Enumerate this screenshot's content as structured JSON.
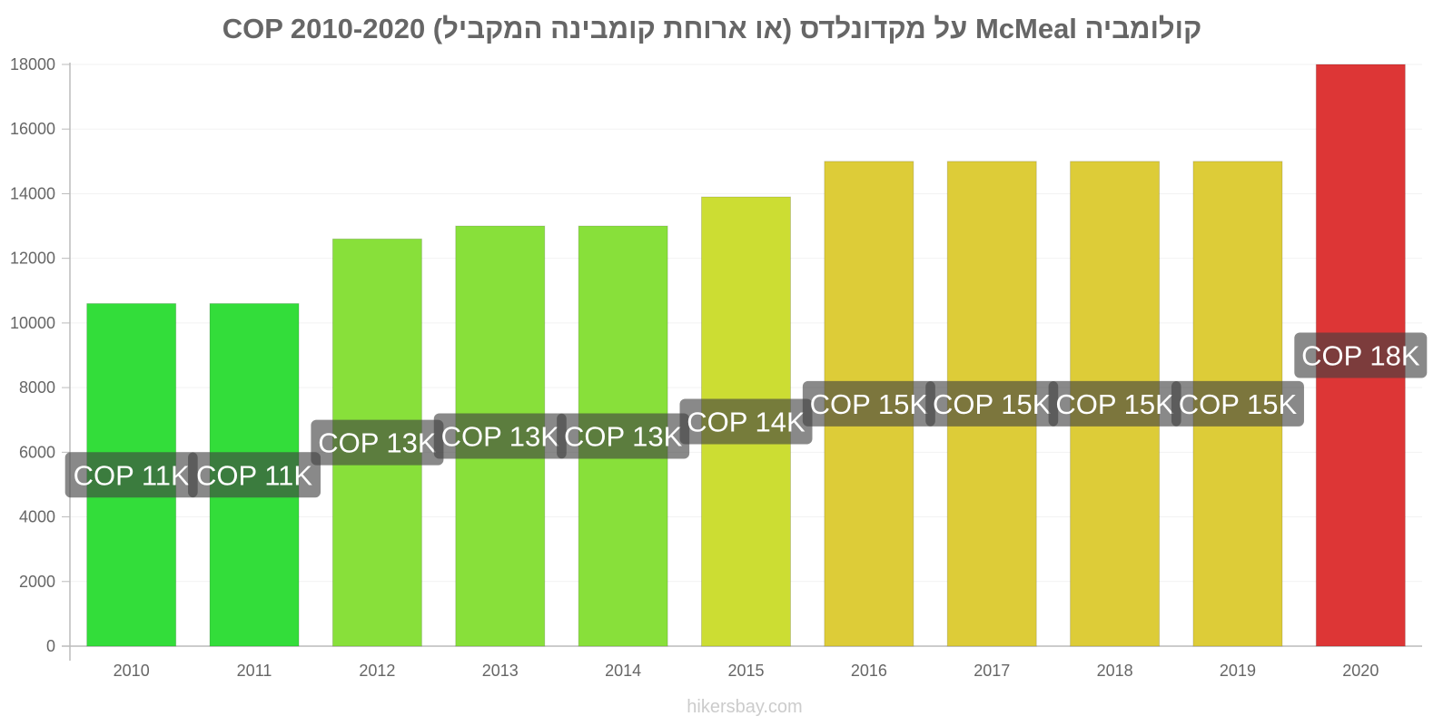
{
  "title": "קולומביה McMeal על מקדונלדס (או ארוחת קומבינה המקביל) COP 2010-2020",
  "watermark": "hikersbay.com",
  "chart_data": {
    "type": "bar",
    "title": "קולומביה McMeal על מקדונלדס (או ארוחת קומבינה המקביל) COP 2010-2020",
    "xlabel": "",
    "ylabel": "",
    "categories": [
      "2010",
      "2011",
      "2012",
      "2013",
      "2014",
      "2015",
      "2016",
      "2017",
      "2018",
      "2019",
      "2020"
    ],
    "values": [
      10600,
      10600,
      12600,
      13000,
      13000,
      13900,
      15000,
      15000,
      15000,
      15000,
      18000
    ],
    "data_labels": [
      "COP 11K",
      "COP 11K",
      "COP 13K",
      "COP 13K",
      "COP 13K",
      "COP 14K",
      "COP 15K",
      "COP 15K",
      "COP 15K",
      "COP 15K",
      "COP 18K"
    ],
    "colors": [
      "#33dd3a",
      "#33dd3a",
      "#88e03a",
      "#88e03a",
      "#88e03a",
      "#ccdd33",
      "#ddcc38",
      "#ddcc38",
      "#ddcc38",
      "#ddcc38",
      "#dd3636"
    ],
    "ylim": [
      0,
      18000
    ],
    "yticks": [
      0,
      2000,
      4000,
      6000,
      8000,
      10000,
      12000,
      14000,
      16000,
      18000
    ],
    "grid": true,
    "legend": "none"
  }
}
